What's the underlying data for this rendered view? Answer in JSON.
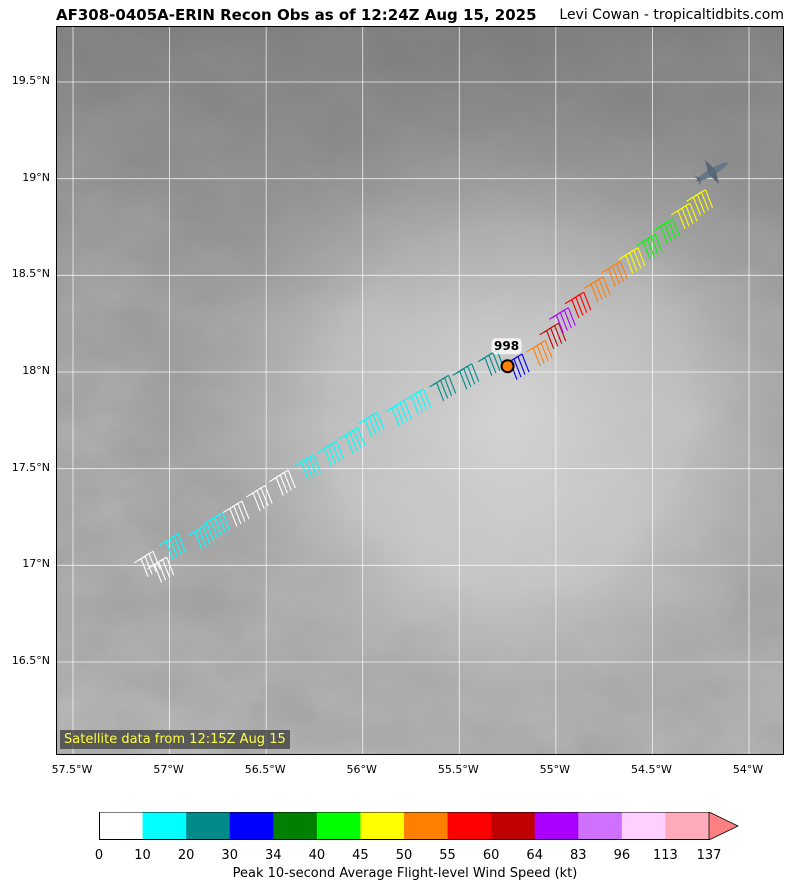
{
  "title": "AF308-0405A-ERIN Recon Obs as of 12:24Z Aug 15, 2025",
  "credit": "Levi Cowan - tropicaltidbits.com",
  "satellite_note": "Satellite data from 12:15Z Aug 15",
  "map": {
    "lat_ticks": [
      "19.5°N",
      "19°N",
      "18.5°N",
      "18°N",
      "17.5°N",
      "17°N",
      "16.5°N"
    ],
    "lon_ticks": [
      "57.5°W",
      "57°W",
      "56.5°W",
      "56°W",
      "55.5°W",
      "55°W",
      "54.5°W",
      "54°W"
    ],
    "center_pressure_label": "998",
    "center_marker_color": "#ff7f00",
    "aircraft_icon": "airplane-icon",
    "observations": [
      {
        "lat": 16.96,
        "lon": -57.08,
        "color": "#ffffff"
      },
      {
        "lat": 16.93,
        "lon": -57.01,
        "color": "#ffffff"
      },
      {
        "lat": 17.05,
        "lon": -56.95,
        "color": "#00ffff"
      },
      {
        "lat": 17.1,
        "lon": -56.8,
        "color": "#00ffff"
      },
      {
        "lat": 17.16,
        "lon": -56.72,
        "color": "#00ffff"
      },
      {
        "lat": 17.22,
        "lon": -56.62,
        "color": "#ffffff"
      },
      {
        "lat": 17.3,
        "lon": -56.5,
        "color": "#ffffff"
      },
      {
        "lat": 17.38,
        "lon": -56.38,
        "color": "#ffffff"
      },
      {
        "lat": 17.46,
        "lon": -56.25,
        "color": "#00ffff"
      },
      {
        "lat": 17.53,
        "lon": -56.13,
        "color": "#00ffff"
      },
      {
        "lat": 17.6,
        "lon": -56.02,
        "color": "#00ffff"
      },
      {
        "lat": 17.68,
        "lon": -55.92,
        "color": "#00ffff"
      },
      {
        "lat": 17.74,
        "lon": -55.78,
        "color": "#00ffff"
      },
      {
        "lat": 17.8,
        "lon": -55.68,
        "color": "#00ffff"
      },
      {
        "lat": 17.87,
        "lon": -55.55,
        "color": "#008b8b"
      },
      {
        "lat": 17.93,
        "lon": -55.43,
        "color": "#008b8b"
      },
      {
        "lat": 18.0,
        "lon": -55.3,
        "color": "#008b8b"
      },
      {
        "lat": 17.98,
        "lon": -55.17,
        "color": "#0000ff"
      },
      {
        "lat": 18.05,
        "lon": -55.05,
        "color": "#ff7f00"
      },
      {
        "lat": 18.14,
        "lon": -54.98,
        "color": "#c00000"
      },
      {
        "lat": 18.22,
        "lon": -54.93,
        "color": "#aa00ff"
      },
      {
        "lat": 18.3,
        "lon": -54.85,
        "color": "#ff0000"
      },
      {
        "lat": 18.38,
        "lon": -54.75,
        "color": "#ff7f00"
      },
      {
        "lat": 18.46,
        "lon": -54.66,
        "color": "#ff7f00"
      },
      {
        "lat": 18.53,
        "lon": -54.57,
        "color": "#ffff00"
      },
      {
        "lat": 18.6,
        "lon": -54.48,
        "color": "#00ff00"
      },
      {
        "lat": 18.68,
        "lon": -54.39,
        "color": "#00ff00"
      },
      {
        "lat": 18.76,
        "lon": -54.3,
        "color": "#ffff00"
      },
      {
        "lat": 18.83,
        "lon": -54.22,
        "color": "#ffff00"
      }
    ]
  },
  "colorbar": {
    "label": "Peak 10-second Average Flight-level Wind Speed (kt)",
    "ticks": [
      "0",
      "10",
      "20",
      "30",
      "34",
      "40",
      "45",
      "50",
      "55",
      "60",
      "64",
      "83",
      "96",
      "113",
      "137"
    ],
    "colors": [
      "#ffffff",
      "#00ffff",
      "#008b8b",
      "#0000ff",
      "#008000",
      "#00ff00",
      "#ffff00",
      "#ff7f00",
      "#ff0000",
      "#c00000",
      "#aa00ff",
      "#d070ff",
      "#ffd0ff",
      "#ffaabb"
    ],
    "extend_color": "#ff8080"
  }
}
